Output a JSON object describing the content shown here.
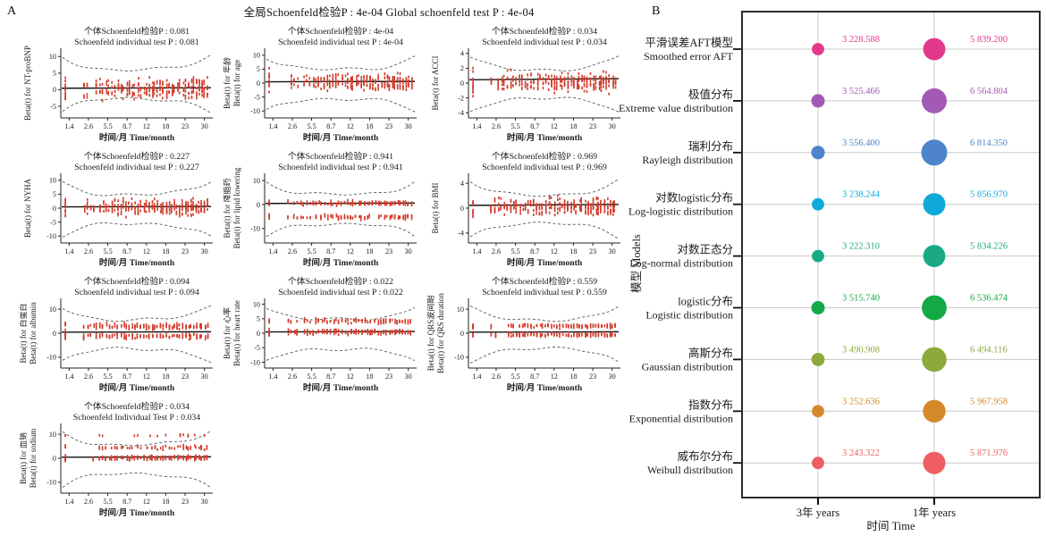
{
  "figure": {
    "panel_a": "A",
    "panel_b": "B"
  },
  "chart_data": [
    {
      "panel": "A",
      "type": "scatter",
      "title": "全局Schoenfeld检验P : 4e-04  Global schoenfeld test P : 4e-04",
      "xlabel": "时间/月 Time/month",
      "x_ticks": [
        "1.4",
        "2.6",
        "5.5",
        "8.7",
        "12",
        "18",
        "23",
        "30"
      ],
      "point_color": "#d23b2b",
      "subplots": [
        {
          "p_cn": "个体Schoenfeld检验P : 0.081",
          "p_en": "Schoenfeld individual test P : 0.081",
          "ylabel_lines": [
            "Beta(t) for NT-proBNP"
          ],
          "y_ticks": [
            10,
            5,
            0,
            -5
          ],
          "ylim": [
            -8.5,
            12.5
          ],
          "bands": [
            {
              "c": 0.3,
              "s": 3.4,
              "f": 1
            }
          ],
          "seed": 3
        },
        {
          "p_cn": "个体Schoenfeld检验P : 4e-04",
          "p_en": "Schoenfeld individual test P : 4e-04",
          "ylabel_lines": [
            "Beta(t) for 年龄",
            "Beta(t) for age"
          ],
          "y_ticks": [
            10,
            5,
            0,
            -5,
            -10
          ],
          "ylim": [
            -12.5,
            12.5
          ],
          "bands": [
            {
              "c": 0.3,
              "s": 3.2,
              "f": 1
            }
          ],
          "seed": 7
        },
        {
          "p_cn": "个体Schoenfeld检验P : 0.034",
          "p_en": "Schoenfeld individual test P : 0.034",
          "ylabel_lines": [
            "Beta(t) for ACCI"
          ],
          "y_ticks": [
            4,
            2,
            0,
            -2,
            -4
          ],
          "ylim": [
            -4.7,
            4.7
          ],
          "bands": [
            {
              "c": 0.1,
              "s": 1.5,
              "f": 1
            }
          ],
          "seed": 11
        },
        {
          "p_cn": "个体Schoenfeld检验P : 0.227",
          "p_en": "Schoenfeld individual test P : 0.227",
          "ylabel_lines": [
            "Beta(t) for NYHA"
          ],
          "y_ticks": [
            10,
            5,
            0,
            -5,
            -10
          ],
          "ylim": [
            -12.5,
            12.5
          ],
          "bands": [
            {
              "c": 0.2,
              "s": 3.2,
              "f": 1
            }
          ],
          "seed": 19
        },
        {
          "p_cn": "个体Schoenfeld检验P : 0.941",
          "p_en": "Schoenfeld individual test P : 0.941",
          "ylabel_lines": [
            "Beta(t) for 降脂药",
            "Beta(t) for lipid lowering"
          ],
          "y_ticks": [
            10,
            0,
            -10
          ],
          "ylim": [
            -16,
            13
          ],
          "bands": [
            {
              "c": 0.6,
              "s": 1.1,
              "f": 0.58
            },
            {
              "c": -5.2,
              "s": 1.1,
              "f": 0.42
            }
          ],
          "seed": 23
        },
        {
          "p_cn": "个体Schoenfeld检验P : 0.969",
          "p_en": "Schoenfeld individual test P : 0.969",
          "ylabel_lines": [
            "Beta(t) for BMI"
          ],
          "y_ticks": [
            4,
            0,
            -4
          ],
          "ylim": [
            -5.6,
            5.6
          ],
          "bands": [
            {
              "c": 0.2,
              "s": 1.5,
              "f": 1
            }
          ],
          "seed": 29
        },
        {
          "p_cn": "个体Schoenfeld检验P : 0.094",
          "p_en": "Schoenfeld individual test P : 0.094",
          "ylabel_lines": [
            "Beta(t) for 白蛋白",
            "Beta(t) for albumin"
          ],
          "y_ticks": [
            10,
            0,
            -10
          ],
          "ylim": [
            -14.5,
            14.5
          ],
          "bands": [
            {
              "c": 2.8,
              "s": 1.4,
              "f": 0.5
            },
            {
              "c": -1.2,
              "s": 1.4,
              "f": 0.5
            }
          ],
          "seed": 31
        },
        {
          "p_cn": "个体Schoenfeld检验P : 0.022",
          "p_en": "Schoenfeld individual test P : 0.022",
          "ylabel_lines": [
            "Beta(t) for 心率",
            "Beta(t) for heart rate"
          ],
          "y_ticks": [
            10,
            5,
            0,
            -5,
            -10
          ],
          "ylim": [
            -12,
            12
          ],
          "bands": [
            {
              "c": 4.2,
              "s": 1.0,
              "f": 0.38
            },
            {
              "c": 0.4,
              "s": 1.0,
              "f": 0.62
            }
          ],
          "seed": 37
        },
        {
          "p_cn": "个体Schoenfeld检验P : 0.559",
          "p_en": "Schoenfeld individual test P : 0.559",
          "ylabel_lines": [
            "Beta(t) for QRS波间期",
            "Beta(t) for QRS duration"
          ],
          "y_ticks": [
            10,
            0,
            -10
          ],
          "ylim": [
            -14.5,
            14.5
          ],
          "bands": [
            {
              "c": 3.0,
              "s": 1.0,
              "f": 0.45
            },
            {
              "c": -0.6,
              "s": 1.0,
              "f": 0.55
            }
          ],
          "seed": 41
        },
        {
          "p_cn": "个体Schoenfeld检验P : 0.034",
          "p_en": "Schoenfeld Individual Test P : 0.034",
          "ylabel_lines": [
            "Beta(t) for 血钠",
            "Beta(t) for sodium"
          ],
          "y_ticks": [
            10,
            0,
            -10
          ],
          "ylim": [
            -14.5,
            14.5
          ],
          "bands": [
            {
              "c": 4.5,
              "s": 1.0,
              "f": 0.28
            },
            {
              "c": 0.2,
              "s": 1.0,
              "f": 0.64
            },
            {
              "c": 9.5,
              "s": 0.5,
              "f": 0.08
            }
          ],
          "seed": 43
        }
      ]
    },
    {
      "panel": "B",
      "type": "bubble",
      "xlabel": "时间 Time",
      "ylabel": "模型 Models",
      "x_categories": [
        "3年 years",
        "1年 years"
      ],
      "models": [
        {
          "name_cn": "平滑误差AFT模型",
          "name_en": "Smoothed error AFT",
          "color": "#e2398c",
          "values": [
            3228.588,
            5839.2
          ],
          "labels": [
            "3 228.588",
            "5 839.200"
          ]
        },
        {
          "name_cn": "极值分布",
          "name_en": "Extreme value distribution",
          "color": "#a25ab4",
          "values": [
            3525.466,
            6564.804
          ],
          "labels": [
            "3 525.466",
            "6 564.804"
          ]
        },
        {
          "name_cn": "瑞利分布",
          "name_en": "Rayleigh distribution",
          "color": "#4e84c9",
          "values": [
            3556.4,
            6814.35
          ],
          "labels": [
            "3 556.400",
            "6 814.350"
          ]
        },
        {
          "name_cn": "对数logistic分布",
          "name_en": "Log-logistic distribution",
          "color": "#0fa9da",
          "values": [
            3238.244,
            5856.97
          ],
          "labels": [
            "3 238.244",
            "5 856.970"
          ]
        },
        {
          "name_cn": "对数正态分",
          "name_en": "Log-normal distribution",
          "color": "#19aa85",
          "values": [
            3222.31,
            5834.226
          ],
          "labels": [
            "3 222.310",
            "5 834.226"
          ]
        },
        {
          "name_cn": "logistic分布",
          "name_en": "Logistic distribution",
          "color": "#13a947",
          "values": [
            3515.74,
            6536.474
          ],
          "labels": [
            "3 515.740",
            "6 536.474"
          ]
        },
        {
          "name_cn": "高斯分布",
          "name_en": "Gaussian distribution",
          "color": "#8caa3b",
          "values": [
            3490.908,
            6494.116
          ],
          "labels": [
            "3 490.908",
            "6 494.116"
          ]
        },
        {
          "name_cn": "指数分布",
          "name_en": "Exponential distribution",
          "color": "#d4892b",
          "values": [
            3252.636,
            5967.958
          ],
          "labels": [
            "3 252.636",
            "5 967.958"
          ]
        },
        {
          "name_cn": "威布尔分布",
          "name_en": "Weibull distribution",
          "color": "#ef5e62",
          "values": [
            3243.322,
            5871.976
          ],
          "labels": [
            "3 243.322",
            "5 871.976"
          ]
        }
      ]
    }
  ]
}
